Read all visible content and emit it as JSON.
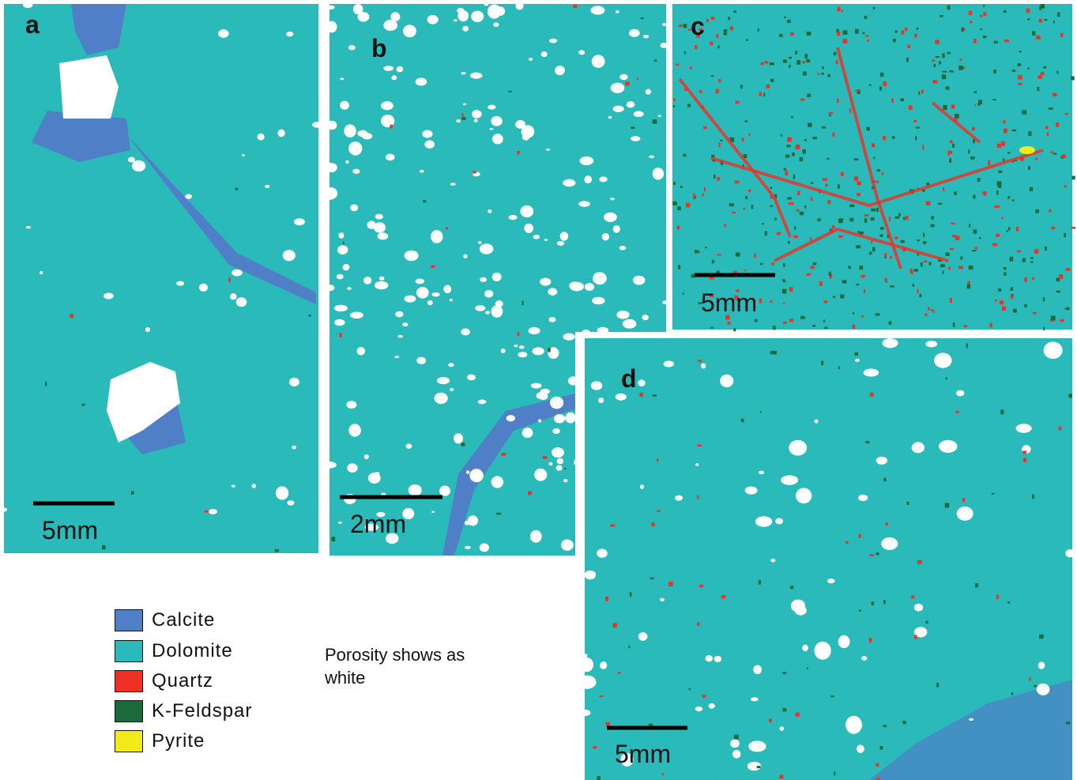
{
  "panels": [
    {
      "label": "a",
      "scale_bar": "5mm"
    },
    {
      "label": "b",
      "scale_bar": "2mm"
    },
    {
      "label": "c",
      "scale_bar": "5mm"
    },
    {
      "label": "d",
      "scale_bar": "5mm"
    }
  ],
  "legend": {
    "items": [
      {
        "name": "Calcite",
        "color": "#4f7fc7"
      },
      {
        "name": "Dolomite",
        "color": "#2bbaba"
      },
      {
        "name": "Quartz",
        "color": "#ee3124"
      },
      {
        "name": "K-Feldspar",
        "color": "#1b6a3a"
      },
      {
        "name": "Pyrite",
        "color": "#f2ea1a"
      }
    ],
    "note": "Porosity shows as white"
  }
}
